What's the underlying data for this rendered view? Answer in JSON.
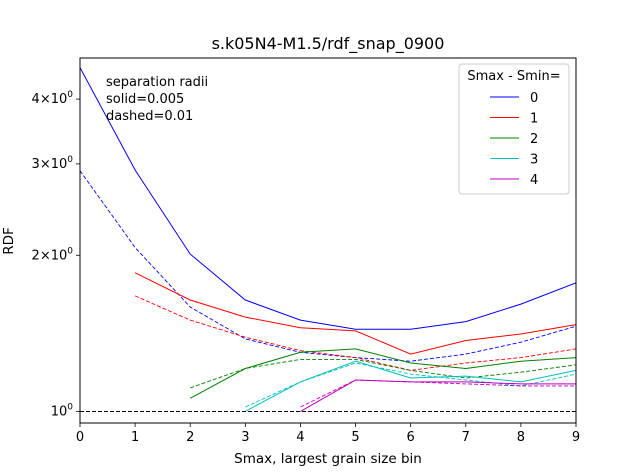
{
  "chart_data": {
    "type": "line",
    "title": "s.k05N4-M1.5/rdf_snap_0900",
    "xlabel": "Smax, largest grain size bin",
    "ylabel": "RDF",
    "xlim": [
      0,
      9
    ],
    "ylim": [
      0.95,
      4.8
    ],
    "yscale": "log",
    "x_ticks": [
      0,
      1,
      2,
      3,
      4,
      5,
      6,
      7,
      8,
      9
    ],
    "y_ticks": [
      {
        "value": 1,
        "label": "10^0"
      },
      {
        "value": 2,
        "label": "2×10^0"
      },
      {
        "value": 3,
        "label": "3×10^0"
      },
      {
        "value": 4,
        "label": "4×10^0"
      }
    ],
    "reference_line": {
      "y": 1,
      "style": "dashed",
      "color": "#000000"
    },
    "annotation": [
      "separation radii",
      "solid=0.005",
      "dashed=0.01"
    ],
    "legend": {
      "title": "Smax - Smin=",
      "position": "top-right"
    },
    "series": [
      {
        "name": "0",
        "color": "#0000ff",
        "style": "solid",
        "x": [
          0,
          1,
          2,
          3,
          4,
          5,
          6,
          7,
          8,
          9
        ],
        "y": [
          4.6,
          2.92,
          2.01,
          1.64,
          1.5,
          1.44,
          1.44,
          1.49,
          1.61,
          1.77
        ]
      },
      {
        "name": "0",
        "color": "#0000ff",
        "style": "dashed",
        "legend": false,
        "x": [
          0,
          1,
          2,
          3,
          4,
          5,
          6,
          7,
          8,
          9
        ],
        "y": [
          2.91,
          2.07,
          1.59,
          1.38,
          1.3,
          1.27,
          1.25,
          1.29,
          1.36,
          1.46
        ]
      },
      {
        "name": "1",
        "color": "#ff0000",
        "style": "solid",
        "x": [
          1,
          2,
          3,
          4,
          5,
          6,
          7,
          8,
          9
        ],
        "y": [
          1.85,
          1.64,
          1.52,
          1.45,
          1.43,
          1.29,
          1.37,
          1.41,
          1.47
        ]
      },
      {
        "name": "1",
        "color": "#ff0000",
        "style": "dashed",
        "legend": false,
        "x": [
          1,
          2,
          3,
          4,
          5,
          6,
          7,
          8,
          9
        ],
        "y": [
          1.67,
          1.5,
          1.39,
          1.31,
          1.27,
          1.2,
          1.24,
          1.27,
          1.32
        ]
      },
      {
        "name": "2",
        "color": "#008000",
        "style": "solid",
        "x": [
          2,
          3,
          4,
          5,
          6,
          7,
          8,
          9
        ],
        "y": [
          1.06,
          1.21,
          1.3,
          1.32,
          1.24,
          1.21,
          1.25,
          1.27
        ]
      },
      {
        "name": "2",
        "color": "#008000",
        "style": "dashed",
        "legend": false,
        "x": [
          2,
          3,
          4,
          5,
          6,
          7,
          8,
          9
        ],
        "y": [
          1.11,
          1.21,
          1.26,
          1.26,
          1.2,
          1.16,
          1.19,
          1.23
        ]
      },
      {
        "name": "3",
        "color": "#00bfbf",
        "style": "solid",
        "x": [
          3,
          4,
          5,
          6,
          7,
          8,
          9
        ],
        "y": [
          1.0,
          1.14,
          1.25,
          1.16,
          1.17,
          1.14,
          1.2
        ]
      },
      {
        "name": "3",
        "color": "#00bfbf",
        "style": "dashed",
        "legend": false,
        "x": [
          3,
          4,
          5,
          6,
          7,
          8,
          9
        ],
        "y": [
          1.02,
          1.14,
          1.24,
          1.18,
          1.15,
          1.12,
          1.18
        ]
      },
      {
        "name": "4",
        "color": "#bf00bf",
        "style": "solid",
        "x": [
          4,
          5,
          6,
          7,
          8,
          9
        ],
        "y": [
          1.0,
          1.15,
          1.14,
          1.14,
          1.13,
          1.13
        ]
      },
      {
        "name": "4",
        "color": "#bf00bf",
        "style": "dashed",
        "legend": false,
        "x": [
          4,
          5,
          6,
          7,
          8,
          9
        ],
        "y": [
          1.02,
          1.15,
          1.14,
          1.13,
          1.12,
          1.12
        ]
      }
    ]
  }
}
